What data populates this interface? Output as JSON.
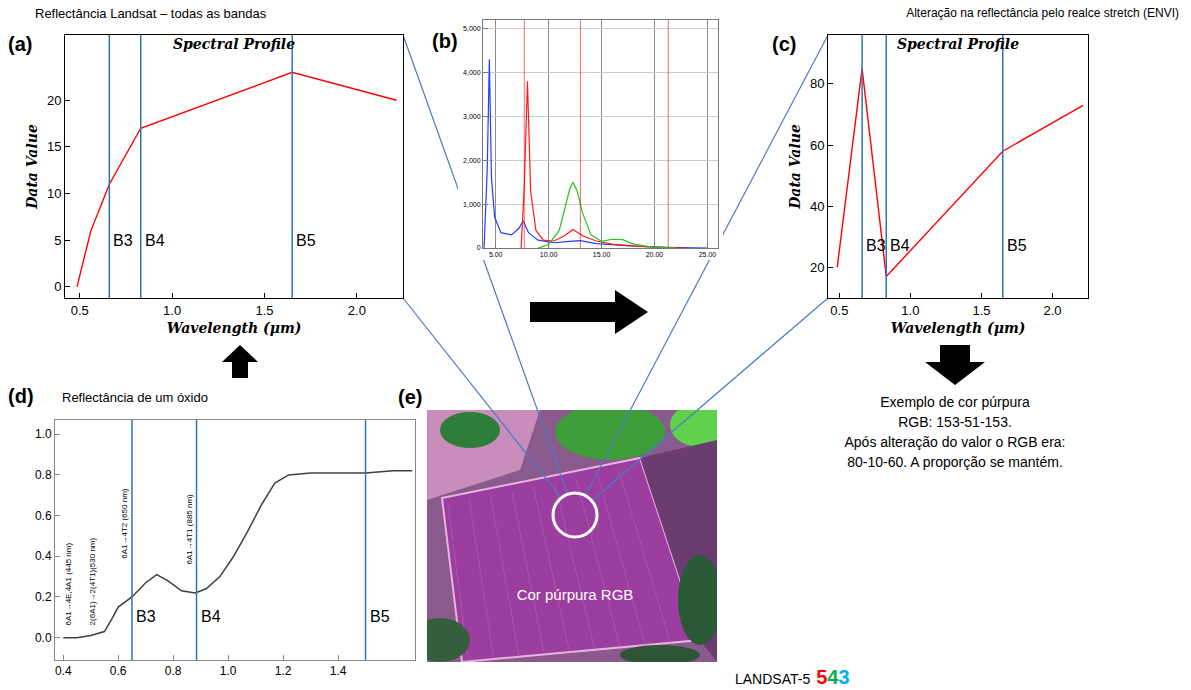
{
  "chart_data": [
    {
      "panel": "(a)",
      "heading": "Reflectância Landsat – todas as bandas",
      "type": "line",
      "title": "Spectral Profile",
      "x_label": "Wavelength (μm)",
      "y_label": "Data Value",
      "x": [
        0.485,
        0.56,
        0.66,
        0.83,
        1.65,
        2.215
      ],
      "values": [
        0,
        6,
        11,
        17,
        23,
        20
      ],
      "color": "#ff0000",
      "xlim": [
        0.42,
        2.25
      ],
      "xticks": [
        0.5,
        {
          "value": 1,
          "label": "1.0"
        },
        1.5,
        {
          "value": 2,
          "label": "2.0"
        }
      ],
      "ylim": [
        -1.2,
        27
      ],
      "yticks": [
        0,
        5,
        10,
        15,
        20
      ],
      "bands": [
        {
          "label": "B3",
          "x": 0.66
        },
        {
          "label": "B4",
          "x": 0.83
        },
        {
          "label": "B5",
          "x": 1.65
        }
      ]
    },
    {
      "panel": "(b)",
      "type": "line",
      "series": [
        {
          "color": "#1f3fff",
          "x": [
            3.9,
            4.2,
            4.4,
            4.6,
            4.9,
            5.5,
            6.5,
            7.2,
            7.6,
            8.1,
            9,
            10.5,
            12,
            13,
            14.5,
            16,
            18,
            21,
            25
          ],
          "values": [
            0,
            1800,
            4300,
            1600,
            700,
            350,
            300,
            450,
            620,
            350,
            180,
            120,
            150,
            170,
            100,
            70,
            40,
            15,
            0
          ]
        },
        {
          "color": "#ff1a1a",
          "x": [
            7.4,
            7.7,
            8.0,
            8.3,
            8.8,
            9.5,
            10.5,
            11.5,
            12.3,
            13.2,
            14.5,
            16,
            18,
            20,
            23
          ],
          "values": [
            0,
            1400,
            3800,
            1300,
            400,
            180,
            160,
            280,
            420,
            280,
            160,
            90,
            50,
            20,
            0
          ]
        },
        {
          "color": "#22c422",
          "x": [
            9,
            10,
            11,
            11.6,
            12.0,
            12.3,
            12.7,
            13.2,
            14,
            15,
            16,
            17,
            18,
            19.5,
            22
          ],
          "values": [
            0,
            80,
            400,
            950,
            1350,
            1500,
            1300,
            800,
            300,
            150,
            200,
            190,
            90,
            30,
            0
          ]
        }
      ],
      "stretch_limits": [
        7.7,
        13.0,
        21.3
      ],
      "xlim": [
        3.8,
        26
      ],
      "xticks": [
        {
          "value": 5,
          "label": "5.00"
        },
        {
          "value": 10,
          "label": "10.00"
        },
        {
          "value": 15,
          "label": "15.00"
        },
        {
          "value": 20,
          "label": "20.00"
        },
        {
          "value": 25,
          "label": "25.00"
        }
      ],
      "ylim": [
        0,
        5200
      ],
      "yticks": [
        0,
        {
          "value": 1000,
          "label": "1,000"
        },
        {
          "value": 2000,
          "label": "2,000"
        },
        {
          "value": 3000,
          "label": "3,000"
        },
        {
          "value": 4000,
          "label": "4,000"
        },
        {
          "value": 5000,
          "label": "5,000"
        }
      ],
      "grid": true
    },
    {
      "panel": "(c)",
      "heading": "Alteração na reflectância pelo realce stretch (ENVI)",
      "type": "line",
      "title": "Spectral Profile",
      "x_label": "Wavelength (μm)",
      "y_label": "Data Value",
      "x": [
        0.485,
        0.56,
        0.66,
        0.83,
        1.65,
        2.215
      ],
      "values": [
        20,
        48,
        85,
        17,
        58,
        73
      ],
      "color": "#ff0000",
      "xlim": [
        0.42,
        2.25
      ],
      "xticks": [
        0.5,
        {
          "value": 1,
          "label": "1.0"
        },
        1.5,
        {
          "value": 2,
          "label": "2.0"
        }
      ],
      "ylim": [
        10,
        96
      ],
      "yticks": [
        20,
        40,
        60,
        80
      ],
      "bands": [
        {
          "label": "B3",
          "x": 0.66
        },
        {
          "label": "B4",
          "x": 0.83
        },
        {
          "label": "B5",
          "x": 1.65
        }
      ]
    },
    {
      "panel": "(d)",
      "heading": "Reflectância de um óxido",
      "type": "line",
      "x": [
        0.4,
        0.45,
        0.5,
        0.55,
        0.58,
        0.6,
        0.65,
        0.7,
        0.74,
        0.78,
        0.83,
        0.88,
        0.92,
        0.97,
        1.02,
        1.07,
        1.12,
        1.17,
        1.22,
        1.3,
        1.4,
        1.5,
        1.6,
        1.67
      ],
      "values": [
        0.0,
        0.0,
        0.01,
        0.03,
        0.1,
        0.15,
        0.2,
        0.27,
        0.31,
        0.28,
        0.23,
        0.22,
        0.24,
        0.3,
        0.4,
        0.52,
        0.65,
        0.76,
        0.8,
        0.81,
        0.81,
        0.81,
        0.82,
        0.82
      ],
      "color": "#404040",
      "xlim": [
        0.37,
        1.68
      ],
      "xticks": [
        0.4,
        0.6,
        0.8,
        {
          "value": 1,
          "label": "1.0"
        },
        1.2,
        1.4
      ],
      "ylim": [
        -0.11,
        1.07
      ],
      "yticks": [
        {
          "value": 0,
          "label": "0.0"
        },
        0.2,
        0.4,
        0.6,
        0.8,
        {
          "value": 1,
          "label": "1.0"
        }
      ],
      "bands": [
        {
          "label": "B3",
          "x": 0.65
        },
        {
          "label": "B4",
          "x": 0.885
        },
        {
          "label": "B5",
          "x": 1.5
        }
      ],
      "annotations": [
        {
          "text": "6A1→4E,4A1 (445 nm)",
          "x": 0.445,
          "y": 0.05
        },
        {
          "text": "2(6A1)→2(4T1)(530 nm)",
          "x": 0.53,
          "y": 0.05
        },
        {
          "text": "6A1→4T2 (650 nm)",
          "x": 0.65,
          "y": 0.38
        },
        {
          "text": "6A1→4T1 (885 nm)",
          "x": 0.885,
          "y": 0.35
        }
      ]
    }
  ],
  "diagram": {
    "image": {
      "panel": "(e)",
      "label": "Cor púrpura RGB",
      "caption": [
        {
          "text": "LANDSAT-5",
          "color": "#000000"
        },
        {
          "text": "5",
          "color": "#ff0000"
        },
        {
          "text": "4",
          "color": "#00b050"
        },
        {
          "text": "3",
          "color": "#00b0f0"
        }
      ]
    },
    "note": [
      "Exemplo de cor púrpura",
      "RGB: 153-51-153.",
      "Após alteração do valor o RGB era:",
      "80-10-60. A proporção se mantém."
    ]
  }
}
